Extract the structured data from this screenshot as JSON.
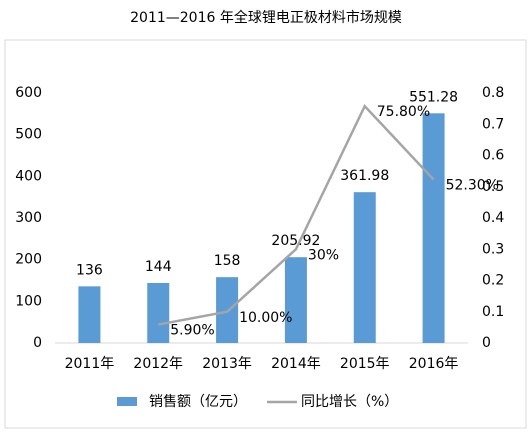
{
  "chart_data": {
    "type": "bar_line",
    "title": "2011—2016 年全球锂电正极材料市场规模",
    "categories": [
      "2011年",
      "2012年",
      "2013年",
      "2014年",
      "2015年",
      "2016年"
    ],
    "series": [
      {
        "name": "销售额（亿元）",
        "color": "#5b9bd5",
        "type": "bar",
        "values": [
          136,
          144,
          158,
          205.92,
          361.98,
          551.28
        ]
      },
      {
        "name": "同比增长（%）",
        "color": "#a5a5a5",
        "type": "line",
        "axis": "y2",
        "values": [
          null,
          0.059,
          0.1,
          0.3,
          0.758,
          0.523
        ],
        "value_labels": [
          null,
          "5.90%",
          "10.00%",
          "30%",
          "75.80%",
          "52.30%"
        ]
      }
    ],
    "ylim": [
      0,
      600
    ],
    "yticks": [
      0,
      100,
      200,
      300,
      400,
      500,
      600
    ],
    "y2lim": [
      0,
      0.8
    ],
    "y2ticks": [
      0,
      0.1,
      0.2,
      0.3,
      0.4,
      0.5,
      0.6,
      0.7,
      0.8
    ],
    "grid": false,
    "legend": "bottom"
  }
}
